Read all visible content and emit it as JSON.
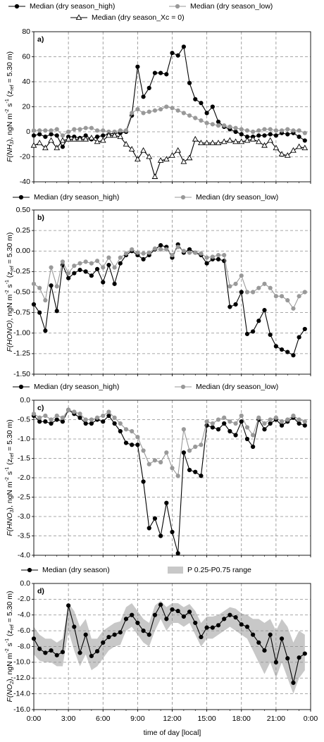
{
  "chart_data": [
    {
      "type": "line",
      "label": "a)",
      "ylabel": [
        {
          "text": "F(NH",
          "italic": true
        },
        {
          "text": "3",
          "italic": true,
          "sub": true
        },
        {
          "text": "), ngN m"
        },
        {
          "text": "-2",
          "sup": true
        },
        {
          "text": " s"
        },
        {
          "text": "-1",
          "sup": true
        },
        {
          "text": " (z"
        },
        {
          "text": "ref",
          "sub": true
        },
        {
          "text": " = 5.30 m)"
        }
      ],
      "x": [
        0,
        0.5,
        1,
        1.5,
        2,
        2.5,
        3,
        3.5,
        4,
        4.5,
        5,
        5.5,
        6,
        6.5,
        7,
        7.5,
        8,
        8.5,
        9,
        9.5,
        10,
        10.5,
        11,
        11.5,
        12,
        12.5,
        13,
        13.5,
        14,
        14.5,
        15,
        15.5,
        16,
        16.5,
        17,
        17.5,
        18,
        18.5,
        19,
        19.5,
        20,
        20.5,
        21,
        21.5,
        22,
        22.5,
        23,
        23.5
      ],
      "xlim": [
        0,
        24
      ],
      "xticks": [
        0,
        3,
        6,
        9,
        12,
        15,
        18,
        21,
        24
      ],
      "ylim": [
        -40,
        80
      ],
      "yticks": [
        -40,
        -20,
        0,
        20,
        40,
        60,
        80
      ],
      "grid": true,
      "series": [
        {
          "name": "Median (dry season_high)",
          "color": "#000000",
          "marker": "circle",
          "marker_fill": "#000000",
          "values": [
            -3,
            -2,
            -4,
            -2,
            -3,
            -12,
            -4,
            -4,
            -5,
            -3,
            -6,
            -4,
            -3,
            -2,
            -1,
            -1,
            0,
            13,
            52,
            28,
            35,
            47,
            47,
            46,
            63,
            61,
            68,
            39,
            26,
            23,
            15,
            20,
            8,
            4,
            2,
            0,
            -2,
            -4,
            -4,
            -3,
            -3,
            -2,
            -3,
            -1,
            -2,
            -1,
            -4,
            -7
          ]
        },
        {
          "name": "Median (dry season_low)",
          "color": "#999999",
          "marker": "circle",
          "marker_fill": "#999999",
          "values": [
            1,
            1,
            1,
            1,
            2,
            -3,
            0,
            2,
            2,
            3,
            3,
            1,
            1,
            0,
            0,
            1,
            1,
            15,
            18,
            15,
            16,
            17,
            18,
            20,
            19,
            17,
            15,
            13,
            11,
            9,
            7,
            6,
            5,
            5,
            4,
            3,
            2,
            1,
            0,
            1,
            2,
            2,
            1,
            1,
            2,
            1,
            1,
            -1
          ]
        },
        {
          "name": "Median (dry season_Xc = 0)",
          "color": "#000000",
          "marker": "triangle",
          "marker_fill": "#ffffff",
          "values": [
            -11,
            -9,
            -13,
            -7,
            -13,
            -7,
            -6,
            -6,
            -6,
            -6,
            -5,
            -8,
            -7,
            -3,
            -3,
            -4,
            -10,
            -14,
            -22,
            -15,
            -20,
            -36,
            -23,
            -22,
            -19,
            -15,
            -24,
            -21,
            -6,
            -9,
            -9,
            -9,
            -9,
            -8,
            -7,
            -8,
            -8,
            -7,
            -6,
            -8,
            -11,
            -7,
            -13,
            -18,
            -19,
            -15,
            -12,
            -13
          ]
        }
      ]
    },
    {
      "type": "line",
      "label": "b)",
      "ylabel": [
        {
          "text": "F(HONO)",
          "italic": true
        },
        {
          "text": ", ngN m"
        },
        {
          "text": "-2",
          "sup": true
        },
        {
          "text": " s"
        },
        {
          "text": "-1",
          "sup": true
        },
        {
          "text": " (z"
        },
        {
          "text": "ref",
          "sub": true
        },
        {
          "text": " = 5.30 m)"
        }
      ],
      "x": [
        0,
        0.5,
        1,
        1.5,
        2,
        2.5,
        3,
        3.5,
        4,
        4.5,
        5,
        5.5,
        6,
        6.5,
        7,
        7.5,
        8,
        8.5,
        9,
        9.5,
        10,
        10.5,
        11,
        11.5,
        12,
        12.5,
        13,
        13.5,
        14,
        14.5,
        15,
        15.5,
        16,
        16.5,
        17,
        17.5,
        18,
        18.5,
        19,
        19.5,
        20,
        20.5,
        21,
        21.5,
        22,
        22.5,
        23,
        23.5
      ],
      "xlim": [
        0,
        24
      ],
      "xticks": [
        0,
        3,
        6,
        9,
        12,
        15,
        18,
        21,
        24
      ],
      "ylim": [
        -1.5,
        0.5
      ],
      "yticks": [
        {
          "value": -1.5,
          "label": "-1.50"
        },
        -1.25,
        {
          "value": -1,
          "label": "-1.00"
        },
        -0.75,
        {
          "value": -0.5,
          "label": "-0.50"
        },
        -0.25,
        {
          "value": 0,
          "label": "0.00"
        },
        0.25,
        {
          "value": 0.5,
          "label": "0.50"
        }
      ],
      "grid": true,
      "series": [
        {
          "name": "Median (dry season_high)",
          "color": "#000000",
          "marker": "circle",
          "marker_fill": "#000000",
          "values": [
            -0.65,
            -0.75,
            -0.97,
            -0.42,
            -0.73,
            -0.17,
            -0.33,
            -0.27,
            -0.23,
            -0.25,
            -0.3,
            -0.22,
            -0.38,
            -0.17,
            -0.4,
            -0.15,
            -0.05,
            0.0,
            -0.05,
            -0.1,
            -0.05,
            0.02,
            0.07,
            0.05,
            -0.08,
            0.08,
            -0.02,
            0.02,
            -0.02,
            -0.05,
            -0.15,
            -0.1,
            -0.1,
            -0.12,
            -0.68,
            -0.65,
            -0.5,
            -1.01,
            -0.98,
            -0.85,
            -0.72,
            -1.02,
            -1.16,
            -1.2,
            -1.23,
            -1.27,
            -1.05,
            -0.95
          ]
        },
        {
          "name": "Median (dry season_low)",
          "color": "#999999",
          "marker": "circle",
          "marker_fill": "#999999",
          "values": [
            -0.4,
            -0.45,
            -0.6,
            -0.2,
            -0.43,
            -0.13,
            -0.27,
            -0.18,
            -0.15,
            -0.13,
            -0.15,
            -0.12,
            -0.2,
            -0.08,
            -0.2,
            -0.08,
            -0.03,
            0.02,
            -0.02,
            -0.03,
            -0.02,
            0.03,
            0.02,
            0.02,
            -0.05,
            0.05,
            0.0,
            -0.02,
            -0.02,
            -0.03,
            -0.08,
            -0.07,
            -0.05,
            -0.05,
            -0.43,
            -0.4,
            -0.3,
            -0.5,
            -0.5,
            -0.45,
            -0.4,
            -0.45,
            -0.55,
            -0.55,
            -0.6,
            -0.7,
            -0.55,
            -0.5
          ]
        }
      ]
    },
    {
      "type": "line",
      "label": "c)",
      "ylabel": [
        {
          "text": "F(HNO",
          "italic": true
        },
        {
          "text": "3",
          "italic": true,
          "sub": true
        },
        {
          "text": "), ngN m"
        },
        {
          "text": "-2",
          "sup": true
        },
        {
          "text": " s"
        },
        {
          "text": "-1",
          "sup": true
        },
        {
          "text": " (z"
        },
        {
          "text": "ref",
          "sub": true
        },
        {
          "text": " = 5.30 m)"
        }
      ],
      "x": [
        0,
        0.5,
        1,
        1.5,
        2,
        2.5,
        3,
        3.5,
        4,
        4.5,
        5,
        5.5,
        6,
        6.5,
        7,
        7.5,
        8,
        8.5,
        9,
        9.5,
        10,
        10.5,
        11,
        11.5,
        12,
        12.5,
        13,
        13.5,
        14,
        14.5,
        15,
        15.5,
        16,
        16.5,
        17,
        17.5,
        18,
        18.5,
        19,
        19.5,
        20,
        20.5,
        21,
        21.5,
        22,
        22.5,
        23,
        23.5
      ],
      "xlim": [
        0,
        24
      ],
      "xticks": [
        0,
        3,
        6,
        9,
        12,
        15,
        18,
        21,
        24
      ],
      "ylim": [
        -4,
        0
      ],
      "yticks": [
        {
          "value": -4,
          "label": "-4.0"
        },
        -3.5,
        {
          "value": -3,
          "label": "-3.0"
        },
        -2.5,
        {
          "value": -2,
          "label": "-2.0"
        },
        -1.5,
        {
          "value": -1,
          "label": "-1.0"
        },
        -0.5,
        {
          "value": 0,
          "label": "0.0"
        }
      ],
      "grid": true,
      "series": [
        {
          "name": "Median (dry season_high)",
          "color": "#000000",
          "marker": "circle",
          "marker_fill": "#000000",
          "values": [
            -0.4,
            -0.55,
            -0.55,
            -0.6,
            -0.5,
            -0.55,
            -0.25,
            -0.35,
            -0.45,
            -0.6,
            -0.6,
            -0.5,
            -0.55,
            -0.4,
            -0.6,
            -0.8,
            -1.1,
            -1.15,
            -1.15,
            -2.1,
            -3.3,
            -3.05,
            -3.5,
            -2.65,
            -3.4,
            -3.95,
            -1.35,
            -1.8,
            -1.85,
            -1.95,
            -0.65,
            -0.7,
            -0.75,
            -0.6,
            -0.8,
            -0.9,
            -0.55,
            -1.0,
            -1.2,
            -0.5,
            -0.75,
            -0.6,
            -0.5,
            -0.65,
            -0.55,
            -0.45,
            -0.6,
            -0.65
          ]
        },
        {
          "name": "Median (dry season_low)",
          "color": "#999999",
          "marker": "circle",
          "marker_fill": "#999999",
          "values": [
            -0.35,
            -0.45,
            -0.4,
            -0.5,
            -0.4,
            -0.45,
            -0.25,
            -0.3,
            -0.35,
            -0.5,
            -0.5,
            -0.45,
            -0.4,
            -0.3,
            -0.45,
            -0.6,
            -0.75,
            -0.8,
            -0.95,
            -1.3,
            -1.65,
            -1.55,
            -1.6,
            -1.35,
            -1.75,
            -1.95,
            -0.75,
            -1.3,
            -1.2,
            -1.15,
            -0.55,
            -0.6,
            -0.5,
            -0.45,
            -0.55,
            -0.6,
            -0.4,
            -0.7,
            -0.9,
            -0.45,
            -0.6,
            -0.5,
            -0.45,
            -0.55,
            -0.5,
            -0.4,
            -0.5,
            -0.55
          ]
        }
      ]
    },
    {
      "type": "line",
      "label": "d)",
      "ylabel": [
        {
          "text": "F(NO",
          "italic": true
        },
        {
          "text": "2",
          "italic": true,
          "sub": true
        },
        {
          "text": "), ngN m"
        },
        {
          "text": "-2",
          "sup": true
        },
        {
          "text": " s"
        },
        {
          "text": "-1",
          "sup": true
        },
        {
          "text": " (z"
        },
        {
          "text": "ref",
          "sub": true
        },
        {
          "text": " = 5.30 m)"
        }
      ],
      "xlabel": "time of day [local]",
      "x": [
        0,
        0.5,
        1,
        1.5,
        2,
        2.5,
        3,
        3.5,
        4,
        4.5,
        5,
        5.5,
        6,
        6.5,
        7,
        7.5,
        8,
        8.5,
        9,
        9.5,
        10,
        10.5,
        11,
        11.5,
        12,
        12.5,
        13,
        13.5,
        14,
        14.5,
        15,
        15.5,
        16,
        16.5,
        17,
        17.5,
        18,
        18.5,
        19,
        19.5,
        20,
        20.5,
        21,
        21.5,
        22,
        22.5,
        23,
        23.5
      ],
      "xlim": [
        0,
        24
      ],
      "xticks": [
        {
          "value": 0,
          "label": "0:00"
        },
        {
          "value": 3,
          "label": "3:00"
        },
        {
          "value": 6,
          "label": "6:00"
        },
        {
          "value": 9,
          "label": "9:00"
        },
        {
          "value": 12,
          "label": "12:00"
        },
        {
          "value": 15,
          "label": "15:00"
        },
        {
          "value": 18,
          "label": "18:00"
        },
        {
          "value": 21,
          "label": "21:00"
        },
        {
          "value": 24,
          "label": "0:00"
        }
      ],
      "ylim": [
        -16,
        0
      ],
      "yticks": [
        {
          "value": -16,
          "label": "-16.0"
        },
        {
          "value": -14,
          "label": "-14.0"
        },
        {
          "value": -12,
          "label": "-12.0"
        },
        {
          "value": -10,
          "label": "-10.0"
        },
        {
          "value": -8,
          "label": "-8.0"
        },
        {
          "value": -6,
          "label": "-6.0"
        },
        {
          "value": -4,
          "label": "-4.0"
        },
        {
          "value": -2,
          "label": "-2.0"
        },
        {
          "value": 0,
          "label": "0.0"
        }
      ],
      "grid": true,
      "series": [
        {
          "name": "Median (dry season)",
          "color": "#000000",
          "marker": "circle",
          "marker_fill": "#000000",
          "values": [
            -7.0,
            -8.3,
            -8.8,
            -8.5,
            -9.1,
            -8.7,
            -2.8,
            -5.5,
            -8.8,
            -6.5,
            -9.2,
            -8.6,
            -7.5,
            -6.8,
            -6.5,
            -6.2,
            -4.5,
            -4.0,
            -5.0,
            -6.0,
            -6.5,
            -4.0,
            -2.7,
            -4.5,
            -3.3,
            -3.5,
            -4.2,
            -3.6,
            -5.0,
            -6.8,
            -5.6,
            -5.6,
            -5.3,
            -4.5,
            -4.0,
            -4.3,
            -5.2,
            -5.5,
            -6.5,
            -7.5,
            -8.5,
            -6.5,
            -10.0,
            -7.0,
            -9.5,
            -12.6,
            -9.4,
            -8.9
          ]
        }
      ],
      "band": {
        "name": "P 0.25-P0.75 range",
        "color": "#c8c8c8",
        "high": [
          -5.5,
          -6.5,
          -7.0,
          -7.0,
          -7.5,
          -7.0,
          -2.5,
          -3.5,
          -5.5,
          -4.5,
          -7.0,
          -7.0,
          -6.0,
          -5.5,
          -5.0,
          -4.8,
          -3.0,
          -2.5,
          -3.5,
          -4.5,
          -5.0,
          -2.8,
          -2.2,
          -3.0,
          -2.5,
          -2.5,
          -3.0,
          -2.6,
          -3.5,
          -5.0,
          -4.2,
          -4.2,
          -4.0,
          -3.5,
          -3.0,
          -3.2,
          -3.8,
          -4.0,
          -4.5,
          -4.5,
          -5.0,
          -4.5,
          -6.0,
          -4.5,
          -5.5,
          -7.5,
          -6.0,
          -6.5
        ],
        "low": [
          -9.0,
          -9.8,
          -10.0,
          -10.0,
          -10.5,
          -10.5,
          -6.0,
          -8.5,
          -10.5,
          -9.0,
          -11.0,
          -10.5,
          -9.5,
          -8.5,
          -8.0,
          -7.8,
          -6.0,
          -5.5,
          -6.5,
          -7.5,
          -8.0,
          -6.0,
          -4.5,
          -6.0,
          -5.0,
          -5.0,
          -5.5,
          -5.0,
          -6.5,
          -8.0,
          -7.0,
          -7.0,
          -6.5,
          -6.0,
          -5.5,
          -6.0,
          -6.5,
          -7.0,
          -8.5,
          -10.0,
          -11.5,
          -10.0,
          -12.0,
          -10.0,
          -12.0,
          -14.0,
          -12.0,
          -11.0
        ]
      }
    }
  ]
}
